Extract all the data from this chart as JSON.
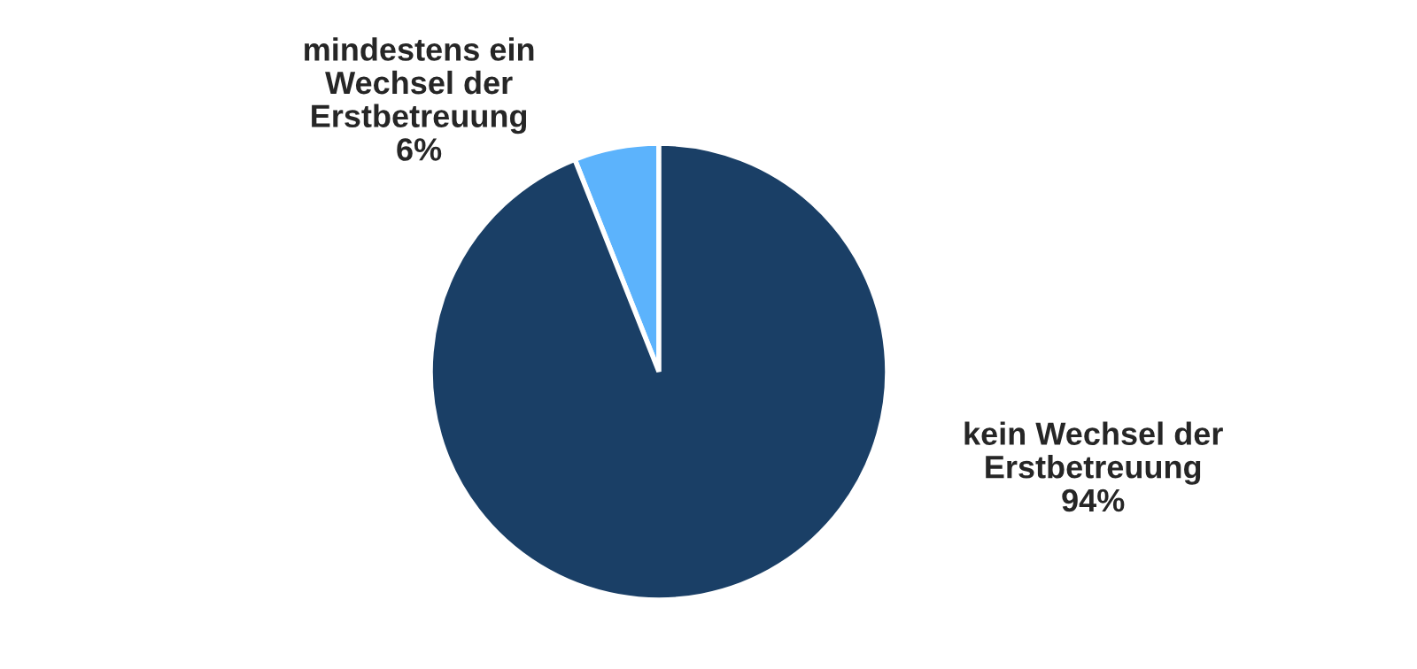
{
  "chart_data": {
    "type": "pie",
    "categories": [
      "mindestens ein\nWechsel der\nErstbetreuung",
      "kein Wechsel der\nErstbetreuung"
    ],
    "values": [
      6,
      94
    ],
    "value_labels": [
      "6%",
      "94%"
    ],
    "colors": [
      "#5cb3fc",
      "#1a3f66"
    ]
  }
}
